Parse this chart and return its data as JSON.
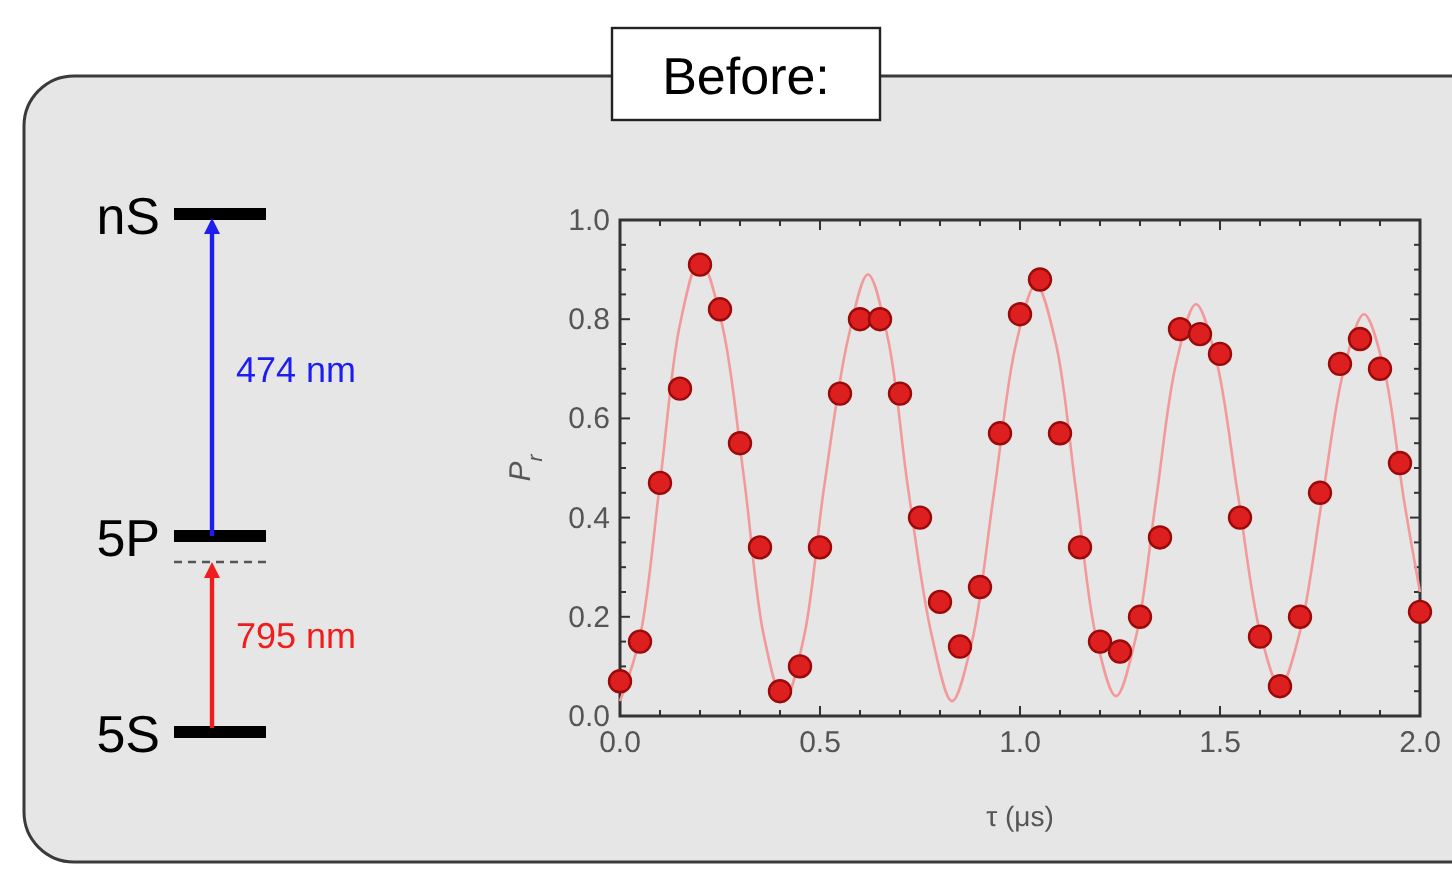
{
  "chart_data": {
    "type": "scatter",
    "title": "Before:",
    "xlabel": "τ (μs)",
    "ylabel": "P$_{r}$",
    "annotations": [
      "nS",
      "5P",
      "5S",
      "474 nm",
      "795 nm"
    ],
    "xlim": [
      0,
      2
    ],
    "ylim": [
      0,
      1
    ],
    "xticks": [
      {
        "value": 0,
        "label": "0.0"
      },
      {
        "value": 0.1,
        "label": null
      },
      {
        "value": 0.2,
        "label": null
      },
      {
        "value": 0.3,
        "label": null
      },
      {
        "value": 0.4,
        "label": null
      },
      {
        "value": 0.5,
        "label": "0.5"
      },
      {
        "value": 0.6,
        "label": null
      },
      {
        "value": 0.7,
        "label": null
      },
      {
        "value": 0.8,
        "label": null
      },
      {
        "value": 0.9,
        "label": null
      },
      {
        "value": 1,
        "label": "1.0"
      },
      {
        "value": 1.1,
        "label": null
      },
      {
        "value": 1.2,
        "label": null
      },
      {
        "value": 1.3,
        "label": null
      },
      {
        "value": 1.4,
        "label": null
      },
      {
        "value": 1.5,
        "label": "1.5"
      },
      {
        "value": 1.6,
        "label": null
      },
      {
        "value": 1.7,
        "label": null
      },
      {
        "value": 1.8,
        "label": null
      },
      {
        "value": 1.9,
        "label": null
      },
      {
        "value": 2,
        "label": "2.0"
      }
    ],
    "yticks": [
      {
        "value": 0,
        "label": "0.0"
      },
      {
        "value": 0.05,
        "label": null
      },
      {
        "value": 0.1,
        "label": null
      },
      {
        "value": 0.15,
        "label": null
      },
      {
        "value": 0.2,
        "label": "0.2"
      },
      {
        "value": 0.25,
        "label": null
      },
      {
        "value": 0.3,
        "label": null
      },
      {
        "value": 0.35,
        "label": null
      },
      {
        "value": 0.4,
        "label": "0.4"
      },
      {
        "value": 0.45,
        "label": null
      },
      {
        "value": 0.5,
        "label": null
      },
      {
        "value": 0.55,
        "label": null
      },
      {
        "value": 0.6,
        "label": "0.6"
      },
      {
        "value": 0.65,
        "label": null
      },
      {
        "value": 0.7,
        "label": null
      },
      {
        "value": 0.75,
        "label": null
      },
      {
        "value": 0.8,
        "label": "0.8"
      },
      {
        "value": 0.85,
        "label": null
      },
      {
        "value": 0.9,
        "label": null
      },
      {
        "value": 0.95,
        "label": null
      },
      {
        "value": 1,
        "label": "1.0"
      }
    ],
    "grid": false,
    "series": [
      {
        "type": "line",
        "color": "#f29a9a",
        "marker": "none",
        "line_style": "solid",
        "x": [
          0,
          0.05,
          0.1,
          0.15,
          0.2,
          0.255,
          0.31,
          0.36,
          0.41,
          0.46,
          0.51,
          0.57,
          0.62,
          0.67,
          0.72,
          0.78,
          0.83,
          0.88,
          0.935,
          0.99,
          1.04,
          1.09,
          1.14,
          1.19,
          1.24,
          1.29,
          1.34,
          1.39,
          1.44,
          1.49,
          1.545,
          1.6,
          1.65,
          1.7,
          1.755,
          1.81,
          1.86,
          1.91,
          1.96,
          2
        ],
        "values": [
          0.03,
          0.16,
          0.47,
          0.79,
          0.92,
          0.79,
          0.48,
          0.16,
          0.03,
          0.16,
          0.46,
          0.76,
          0.89,
          0.76,
          0.46,
          0.16,
          0.03,
          0.15,
          0.45,
          0.75,
          0.87,
          0.75,
          0.455,
          0.16,
          0.04,
          0.16,
          0.435,
          0.71,
          0.83,
          0.72,
          0.445,
          0.17,
          0.06,
          0.17,
          0.435,
          0.7,
          0.81,
          0.7,
          0.435,
          0.25
        ]
      },
      {
        "color": "#dd1f1f",
        "marker": "circle",
        "x": [
          0,
          0.05,
          0.1,
          0.15,
          0.2,
          0.25,
          0.3,
          0.35,
          0.4,
          0.45,
          0.5,
          0.55,
          0.6,
          0.65,
          0.7,
          0.75,
          0.8,
          0.85,
          0.9,
          0.95,
          1,
          1.05,
          1.1,
          1.15,
          1.2,
          1.25,
          1.3,
          1.35,
          1.4,
          1.45,
          1.5,
          1.55,
          1.6,
          1.65,
          1.7,
          1.75,
          1.8,
          1.85,
          1.9,
          1.95,
          2
        ],
        "values": [
          0.07,
          0.15,
          0.47,
          0.66,
          0.91,
          0.82,
          0.55,
          0.34,
          0.05,
          0.1,
          0.34,
          0.65,
          0.8,
          0.8,
          0.65,
          0.4,
          0.23,
          0.14,
          0.26,
          0.57,
          0.81,
          0.88,
          0.57,
          0.34,
          0.15,
          0.13,
          0.2,
          0.36,
          0.78,
          0.77,
          0.73,
          0.4,
          0.16,
          0.06,
          0.2,
          0.45,
          0.71,
          0.76,
          0.7,
          0.51,
          0.21
        ]
      }
    ]
  }
}
